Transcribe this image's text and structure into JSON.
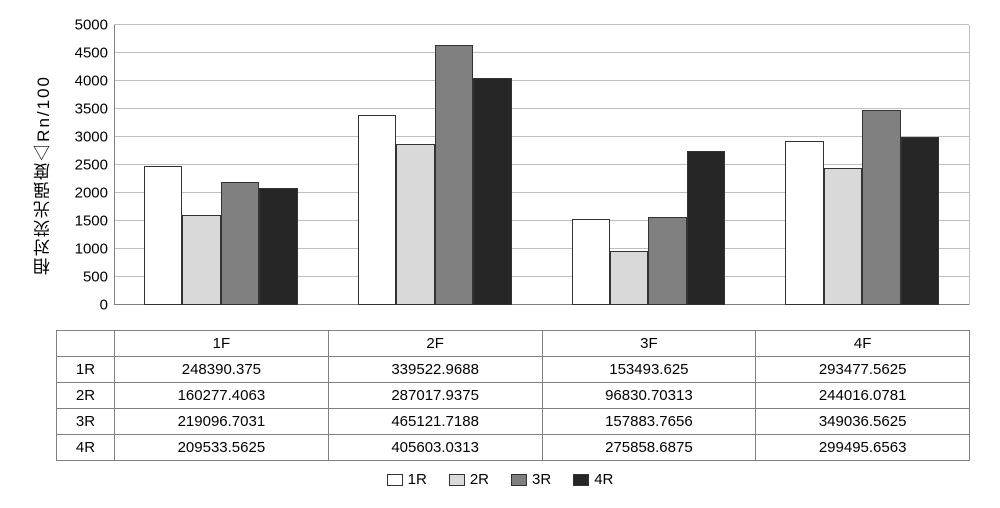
{
  "chart": {
    "type": "grouped-bar-with-data-table",
    "y_axis_label": "相对荧光强度△Rn/100",
    "ylim": [
      0,
      5000
    ],
    "ytick_step": 500,
    "yticks": [
      0,
      500,
      1000,
      1500,
      2000,
      2500,
      3000,
      3500,
      4000,
      4500,
      5000
    ],
    "categories": [
      "1F",
      "2F",
      "3F",
      "4F"
    ],
    "series": [
      {
        "name": "1R",
        "color": "#ffffff",
        "values": [
          2484,
          3395,
          1535,
          2935
        ]
      },
      {
        "name": "2R",
        "color": "#d9d9d9",
        "values": [
          1603,
          2870,
          968,
          2440
        ]
      },
      {
        "name": "3R",
        "color": "#808080",
        "values": [
          2191,
          4651,
          1579,
          3490
        ]
      },
      {
        "name": "4R",
        "color": "#262626",
        "values": [
          2095,
          4056,
          2759,
          2995
        ]
      }
    ],
    "grid_color": "#bfbfbf",
    "axis_color": "#808080",
    "background_color": "#ffffff",
    "bar_border_color": "#333333",
    "label_fontsize": 15,
    "ylabel_fontsize": 17
  },
  "table": {
    "columns": [
      "",
      "1F",
      "2F",
      "3F",
      "4F"
    ],
    "rows": [
      [
        "1R",
        "248390.375",
        "339522.9688",
        "153493.625",
        "293477.5625"
      ],
      [
        "2R",
        "160277.4063",
        "287017.9375",
        "96830.70313",
        "244016.0781"
      ],
      [
        "3R",
        "219096.7031",
        "465121.7188",
        "157883.7656",
        "349036.5625"
      ],
      [
        "4R",
        "209533.5625",
        "405603.0313",
        "275858.6875",
        "299495.6563"
      ]
    ]
  },
  "legend": {
    "items": [
      "1R",
      "2R",
      "3R",
      "4R"
    ]
  }
}
